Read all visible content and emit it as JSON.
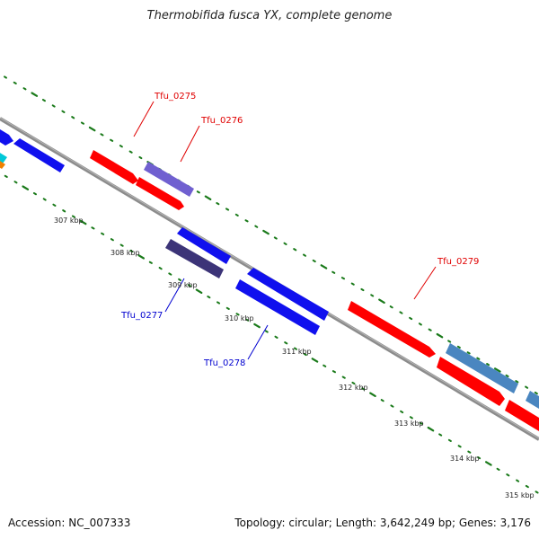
{
  "title": "Thermobifida fusca YX, complete genome",
  "footer": {
    "accession": "Accession: NC_007333",
    "summary": "Topology: circular; Length: 3,642,249 bp; Genes: 3,176"
  },
  "scale_labels": [
    "307 kbp",
    "308 kbp",
    "309 kbp",
    "310 kbp",
    "311 kbp",
    "312 kbp",
    "313 kbp",
    "314 kbp",
    "315 kbp"
  ],
  "gene_labels": [
    {
      "text": "Tfu_0275",
      "color": "#e00000"
    },
    {
      "text": "Tfu_0276",
      "color": "#e00000"
    },
    {
      "text": "Tfu_0277",
      "color": "#0000d0"
    },
    {
      "text": "Tfu_0278",
      "color": "#0000d0"
    },
    {
      "text": "Tfu_0279",
      "color": "#e00000"
    }
  ],
  "colors": {
    "backbone": "#8c8c8c",
    "ticks": "#1a7a1a",
    "red_gene": "#ff0000",
    "blue_gene": "#1010ee",
    "purple_gene": "#7060d0",
    "dark_navy_gene": "#3c3478",
    "steel_gene": "#4a86c0",
    "cyan_gene": "#00c8d8",
    "orange_gene": "#f08000"
  }
}
